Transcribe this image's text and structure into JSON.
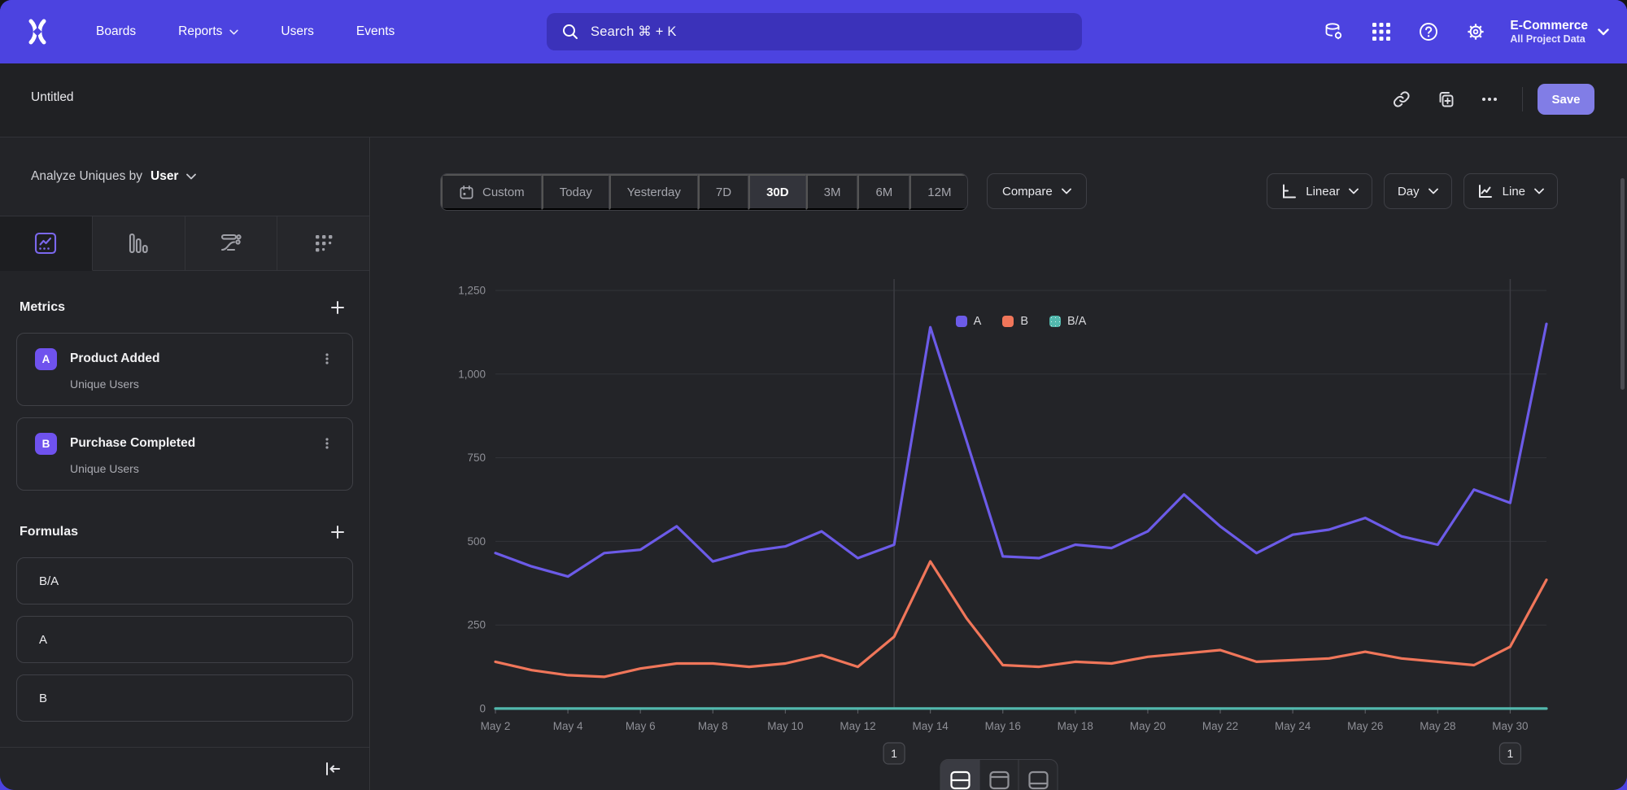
{
  "nav": {
    "items": [
      {
        "label": "Boards",
        "chevron": false
      },
      {
        "label": "Reports",
        "chevron": true
      },
      {
        "label": "Users",
        "chevron": false
      },
      {
        "label": "Events",
        "chevron": false
      }
    ],
    "search_placeholder": "Search  ⌘ + K",
    "project": {
      "name": "E-Commerce",
      "scope": "All Project Data"
    }
  },
  "title_bar": {
    "title": "Untitled",
    "save_label": "Save"
  },
  "sidebar": {
    "analyze_prefix": "Analyze Uniques by",
    "analyze_value": "User",
    "metrics_title": "Metrics",
    "metrics": [
      {
        "badge": "A",
        "name": "Product Added",
        "subtitle": "Unique Users"
      },
      {
        "badge": "B",
        "name": "Purchase Completed",
        "subtitle": "Unique Users"
      }
    ],
    "formulas_title": "Formulas",
    "formulas": [
      "B/A",
      "A",
      "B"
    ]
  },
  "toolbar": {
    "ranges": [
      "Custom",
      "Today",
      "Yesterday",
      "7D",
      "30D",
      "3M",
      "6M",
      "12M"
    ],
    "active_range": "30D",
    "compare_label": "Compare",
    "scale_label": "Linear",
    "interval_label": "Day",
    "chart_type_label": "Line"
  },
  "chart_data": {
    "type": "line",
    "title": "",
    "xlabel": "",
    "ylabel": "",
    "ylim": [
      0,
      1250
    ],
    "y_ticks": [
      "0",
      "250",
      "500",
      "750",
      "1,000",
      "1,250"
    ],
    "grid": "horizontal",
    "legend_position": "top-center",
    "x": [
      "May 2",
      "May 3",
      "May 4",
      "May 5",
      "May 6",
      "May 7",
      "May 8",
      "May 9",
      "May 10",
      "May 11",
      "May 12",
      "May 13",
      "May 14",
      "May 15",
      "May 16",
      "May 17",
      "May 18",
      "May 19",
      "May 20",
      "May 21",
      "May 22",
      "May 23",
      "May 24",
      "May 25",
      "May 26",
      "May 27",
      "May 28",
      "May 29",
      "May 30",
      "May 31"
    ],
    "x_tick_labels": [
      "May 2",
      "May 4",
      "May 6",
      "May 8",
      "May 10",
      "May 12",
      "May 14",
      "May 16",
      "May 18",
      "May 20",
      "May 22",
      "May 24",
      "May 26",
      "May 28",
      "May 30"
    ],
    "series": [
      {
        "name": "A",
        "color": "#6C5BE8",
        "values": [
          465,
          425,
          395,
          465,
          475,
          545,
          440,
          470,
          485,
          530,
          450,
          490,
          1140,
          800,
          455,
          450,
          490,
          480,
          530,
          640,
          545,
          465,
          520,
          535,
          570,
          515,
          490,
          655,
          615,
          1150
        ]
      },
      {
        "name": "B",
        "color": "#F0765A",
        "values": [
          140,
          115,
          100,
          95,
          120,
          135,
          135,
          125,
          135,
          160,
          125,
          215,
          440,
          270,
          130,
          125,
          140,
          135,
          155,
          165,
          175,
          140,
          145,
          150,
          170,
          150,
          140,
          130,
          185,
          385
        ]
      },
      {
        "name": "B/A",
        "color": "#52B8AD",
        "values": [
          0.3,
          0.27,
          0.25,
          0.2,
          0.25,
          0.25,
          0.31,
          0.27,
          0.28,
          0.3,
          0.28,
          0.44,
          0.39,
          0.34,
          0.29,
          0.28,
          0.29,
          0.28,
          0.29,
          0.26,
          0.32,
          0.3,
          0.28,
          0.28,
          0.3,
          0.29,
          0.29,
          0.2,
          0.3,
          0.33
        ]
      }
    ],
    "annotations": [
      {
        "label": "1",
        "x_index": 11
      },
      {
        "label": "1",
        "x_index": 28
      }
    ]
  },
  "bottom_toggle": {
    "active_index": 0
  },
  "colors": {
    "nav_purple": "#4C43E0",
    "accent_purple": "#6F52EE",
    "series_a": "#6C5BE8",
    "series_b": "#F0765A",
    "series_ba": "#52B8AD",
    "save_button": "#817DE6"
  }
}
